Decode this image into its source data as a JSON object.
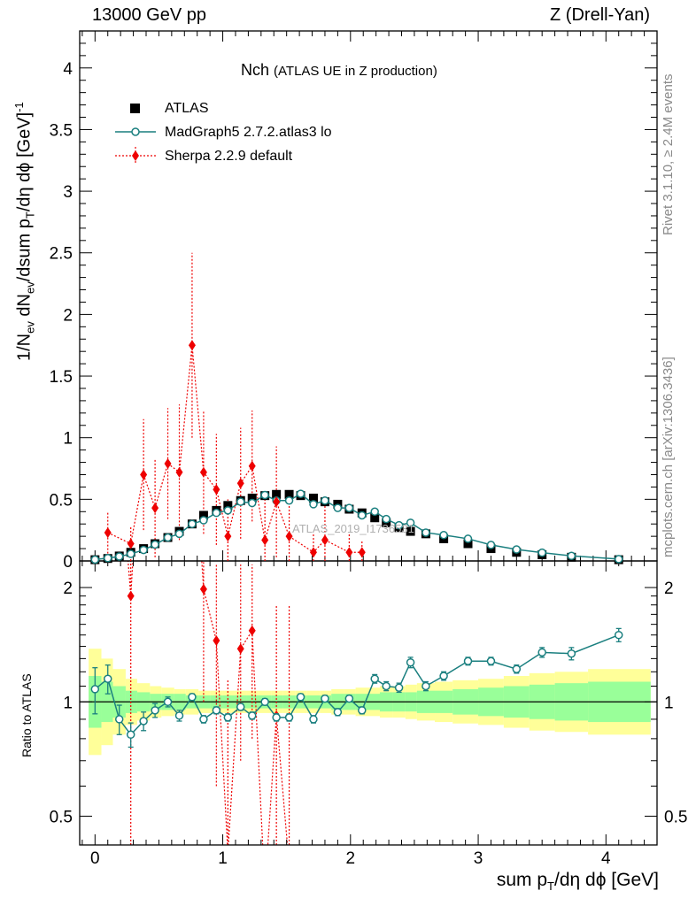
{
  "header": {
    "left": "13000 GeV pp",
    "right": "Z (Drell-Yan)"
  },
  "side_labels": {
    "rivet": "Rivet 3.1.10, ≥ 2.4M events",
    "mcplots": "mcplots.cern.ch [arXiv:1306.3436]"
  },
  "plot_title": {
    "main": "Nch",
    "sub": "(ATLAS UE in Z production)"
  },
  "y_axis_title": {
    "p1": "1/N",
    "s1": "ev",
    "p2": " dN",
    "s2": "ev",
    "p3": "/dsum p",
    "s3": "T",
    "p4": "/dη dϕ  [GeV]",
    "sup": "-1"
  },
  "ratio_axis_title": "Ratio to ATLAS",
  "x_axis_title": {
    "p1": "sum p",
    "s1": "T",
    "p2": "/dη dϕ [GeV]"
  },
  "watermark": "ATLAS_2019_I1736531",
  "legend": {
    "data": "ATLAS",
    "mc1": "MadGraph5 2.7.2.atlas3 lo",
    "mc2": "Sherpa 2.2.9 default"
  },
  "colors": {
    "data": "#000000",
    "mc1": "#1a7f7f",
    "mc2": "#ee0000",
    "band_inner": "#99ff99",
    "band_outer": "#ffff99"
  },
  "chart_data": [
    {
      "type": "scatter",
      "title": "Nch (ATLAS UE in Z production)",
      "xlabel": "sum pT/dη dϕ [GeV]",
      "ylabel": "1/Nev dNev/dsum pT/dη dϕ [GeV]^-1",
      "xlim": [
        -0.12,
        4.4
      ],
      "ylim": [
        0,
        4.3
      ],
      "x_ticks": [
        0,
        1,
        2,
        3,
        4
      ],
      "y_ticks": [
        "0",
        "0.5",
        "1",
        "1.5",
        "2",
        "2.5",
        "3",
        "3.5",
        "4"
      ],
      "series": [
        {
          "name": "ATLAS",
          "marker": "square",
          "x": [
            0.0,
            0.1,
            0.19,
            0.28,
            0.38,
            0.47,
            0.57,
            0.66,
            0.76,
            0.85,
            0.95,
            1.04,
            1.14,
            1.23,
            1.33,
            1.42,
            1.52,
            1.61,
            1.71,
            1.8,
            1.9,
            1.99,
            2.09,
            2.19,
            2.28,
            2.38,
            2.47,
            2.59,
            2.73,
            2.92,
            3.1,
            3.3,
            3.5,
            3.73,
            4.1
          ],
          "y": [
            0.01,
            0.02,
            0.04,
            0.07,
            0.1,
            0.14,
            0.19,
            0.24,
            0.3,
            0.37,
            0.41,
            0.45,
            0.49,
            0.51,
            0.53,
            0.54,
            0.54,
            0.53,
            0.51,
            0.48,
            0.46,
            0.42,
            0.39,
            0.35,
            0.31,
            0.27,
            0.24,
            0.22,
            0.18,
            0.14,
            0.1,
            0.07,
            0.05,
            0.03,
            0.01
          ]
        },
        {
          "name": "MadGraph5 2.7.2.atlas3 lo",
          "marker": "open-circle",
          "x": [
            0.0,
            0.1,
            0.19,
            0.28,
            0.38,
            0.47,
            0.57,
            0.66,
            0.76,
            0.85,
            0.95,
            1.04,
            1.14,
            1.23,
            1.33,
            1.42,
            1.52,
            1.61,
            1.71,
            1.8,
            1.9,
            1.99,
            2.09,
            2.19,
            2.28,
            2.38,
            2.47,
            2.59,
            2.73,
            2.92,
            3.1,
            3.3,
            3.5,
            3.73,
            4.1
          ],
          "y": [
            0.011,
            0.023,
            0.036,
            0.057,
            0.089,
            0.133,
            0.19,
            0.22,
            0.3,
            0.33,
            0.39,
            0.41,
            0.48,
            0.47,
            0.535,
            0.49,
            0.49,
            0.545,
            0.46,
            0.49,
            0.43,
            0.43,
            0.37,
            0.4,
            0.34,
            0.29,
            0.31,
            0.23,
            0.21,
            0.18,
            0.13,
            0.093,
            0.067,
            0.041,
            0.015
          ]
        },
        {
          "name": "Sherpa 2.2.9 default",
          "marker": "diamond",
          "x": [
            0.1,
            0.28,
            0.38,
            0.47,
            0.57,
            0.66,
            0.76,
            0.85,
            0.95,
            1.04,
            1.14,
            1.23,
            1.33,
            1.42,
            1.52,
            1.71,
            1.8,
            1.99,
            2.09
          ],
          "y": [
            0.23,
            0.14,
            0.7,
            0.43,
            0.79,
            0.72,
            1.75,
            0.72,
            0.58,
            0.2,
            0.63,
            0.77,
            0.17,
            0.48,
            0.2,
            0.07,
            0.17,
            0.07,
            0.07
          ],
          "err": [
            0.17,
            0.14,
            0.45,
            0.4,
            0.45,
            0.55,
            0.75,
            0.5,
            0.45,
            0.3,
            0.45,
            0.45,
            0.35,
            0.45,
            0.35,
            0.15,
            0.3,
            0.15,
            0.1
          ]
        }
      ]
    },
    {
      "type": "scatter",
      "title": "Ratio to ATLAS",
      "ylabel": "Ratio to ATLAS",
      "yscale": "log",
      "ylim": [
        0.42,
        2.35
      ],
      "y_ticks": [
        "0.5",
        "1",
        "2"
      ],
      "series": [
        {
          "name": "MadGraph5 2.7.2.atlas3 lo",
          "x": [
            0.0,
            0.1,
            0.19,
            0.28,
            0.38,
            0.47,
            0.57,
            0.66,
            0.76,
            0.85,
            0.95,
            1.04,
            1.14,
            1.23,
            1.33,
            1.42,
            1.52,
            1.61,
            1.71,
            1.8,
            1.9,
            1.99,
            2.09,
            2.19,
            2.28,
            2.38,
            2.47,
            2.59,
            2.73,
            2.92,
            3.1,
            3.3,
            3.5,
            3.73,
            4.1
          ],
          "y": [
            1.08,
            1.15,
            0.9,
            0.82,
            0.89,
            0.95,
            1.0,
            0.92,
            1.03,
            0.9,
            0.95,
            0.91,
            0.97,
            0.92,
            1.0,
            0.91,
            0.91,
            1.03,
            0.9,
            1.02,
            0.94,
            1.02,
            0.95,
            1.15,
            1.1,
            1.09,
            1.27,
            1.1,
            1.17,
            1.28,
            1.28,
            1.22,
            1.35,
            1.34,
            1.5
          ],
          "err": [
            0.15,
            0.1,
            0.08,
            0.06,
            0.05,
            0.04,
            0.03,
            0.03,
            0.02,
            0.02,
            0.02,
            0.02,
            0.02,
            0.02,
            0.02,
            0.02,
            0.02,
            0.02,
            0.02,
            0.02,
            0.02,
            0.02,
            0.02,
            0.03,
            0.03,
            0.03,
            0.04,
            0.03,
            0.03,
            0.03,
            0.03,
            0.03,
            0.04,
            0.05,
            0.06
          ]
        },
        {
          "name": "Sherpa 2.2.9 default",
          "x": [
            0.28,
            0.85,
            0.95,
            1.04,
            1.14,
            1.23,
            1.42
          ],
          "y": [
            1.9,
            1.98,
            1.45,
            0.4,
            1.38,
            1.54,
            0.92
          ]
        }
      ],
      "band_edges": [
        -0.05,
        0.05,
        0.14,
        0.24,
        0.33,
        0.43,
        0.52,
        0.62,
        0.71,
        0.81,
        0.9,
        1.0,
        1.09,
        1.19,
        1.28,
        1.38,
        1.47,
        1.57,
        1.66,
        1.76,
        1.85,
        1.95,
        2.04,
        2.14,
        2.23,
        2.33,
        2.43,
        2.52,
        2.66,
        2.8,
        3.0,
        3.2,
        3.4,
        3.6,
        3.86,
        4.35
      ],
      "band_inner": [
        0.17,
        0.13,
        0.1,
        0.07,
        0.06,
        0.05,
        0.05,
        0.05,
        0.04,
        0.04,
        0.04,
        0.04,
        0.04,
        0.04,
        0.04,
        0.04,
        0.04,
        0.04,
        0.04,
        0.04,
        0.05,
        0.05,
        0.05,
        0.05,
        0.06,
        0.06,
        0.06,
        0.07,
        0.07,
        0.08,
        0.09,
        0.1,
        0.11,
        0.12,
        0.13
      ],
      "band_outer": [
        0.38,
        0.3,
        0.22,
        0.15,
        0.12,
        0.1,
        0.09,
        0.08,
        0.08,
        0.07,
        0.07,
        0.07,
        0.07,
        0.07,
        0.07,
        0.07,
        0.07,
        0.07,
        0.07,
        0.07,
        0.08,
        0.08,
        0.09,
        0.09,
        0.1,
        0.1,
        0.11,
        0.12,
        0.13,
        0.14,
        0.15,
        0.17,
        0.19,
        0.2,
        0.22
      ]
    }
  ]
}
